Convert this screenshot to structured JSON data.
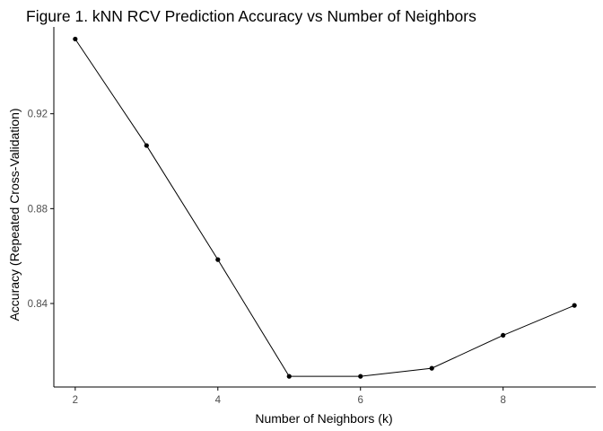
{
  "chart_data": {
    "type": "line",
    "title": "Figure 1. kNN RCV Prediction Accuracy vs Number of Neighbors",
    "xlabel": "Number of Neighbors (k)",
    "ylabel": "Accuracy (Repeated Cross-Validation)",
    "x": [
      2,
      3,
      4,
      5,
      6,
      7,
      8,
      9
    ],
    "values": [
      0.9515,
      0.9066,
      0.8585,
      0.8093,
      0.8093,
      0.8127,
      0.8266,
      0.8392
    ],
    "xlim": [
      1.7,
      9.3
    ],
    "ylim": [
      0.8048,
      0.9566
    ],
    "x_ticks": [
      2,
      4,
      6,
      8
    ],
    "x_tick_labels": [
      "2",
      "4",
      "6",
      "8"
    ],
    "y_ticks": [
      0.84,
      0.88,
      0.92
    ],
    "y_tick_labels": [
      "0.84",
      "0.88",
      "0.92"
    ],
    "grid": false,
    "legend": "none",
    "colors": {
      "line": "#000000",
      "points": "#000000",
      "axis": "#000000",
      "tick_label": "#4d4d4d"
    }
  }
}
